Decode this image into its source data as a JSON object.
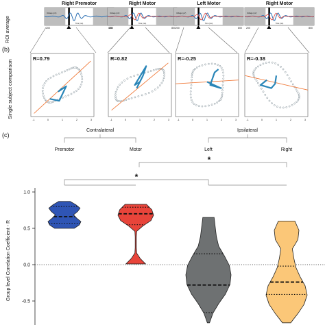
{
  "figure": {
    "top_titles": [
      "Right Premotor",
      "Right Motor",
      "Left Motor",
      "Right Motor"
    ],
    "row_a_ylabel": "ROI average",
    "mini_plot": {
      "ylabel": "Voltage (μV)",
      "xlabel": "Time (ms)",
      "tick_left": "200",
      "tick_right": "800"
    },
    "panel_b_label": "(b)",
    "row_b_ylabel": "Single subject comparison",
    "r_values": [
      "R=0.79",
      "R=0.82",
      "R=-0.25",
      "R=-0.38"
    ],
    "scatter_tick_labels": [
      "-1",
      "0",
      "1",
      "2",
      "3"
    ],
    "panel_c_label": "(c)",
    "contralateral": "Contralateral",
    "ipsilateral": "Ipsilateral",
    "cond_labels": [
      "Premotor",
      "Motor",
      "Left",
      "Right"
    ],
    "sig_marks": [
      "*",
      "*"
    ]
  },
  "chart_data": {
    "type": "violin",
    "ylabel": "Group level Correlation Coefficient - R",
    "ylim": [
      -0.8,
      1.0
    ],
    "yticks": [
      "1.0",
      "0.5",
      "0.0",
      "-0.5"
    ],
    "categories": [
      "Premotor",
      "Motor",
      "Left",
      "Right"
    ],
    "series": [
      {
        "name": "Premotor",
        "color": "#2f55b5",
        "min": 0.5,
        "max": 0.87,
        "median": 0.66,
        "q1": 0.57,
        "q3": 0.8
      },
      {
        "name": "Motor",
        "color": "#e8443a",
        "min": 0.01,
        "max": 0.83,
        "median": 0.7,
        "q1": 0.55,
        "q3": 0.79
      },
      {
        "name": "Left",
        "color": "#6e7172",
        "min": -0.8,
        "max": 0.65,
        "median": -0.28,
        "q1": -0.66,
        "q3": 0.15
      },
      {
        "name": "Right",
        "color": "#fbc778",
        "min": -0.8,
        "max": 0.6,
        "median": -0.24,
        "q1": -0.41,
        "q3": -0.02
      }
    ],
    "zero_line": "dotted"
  }
}
